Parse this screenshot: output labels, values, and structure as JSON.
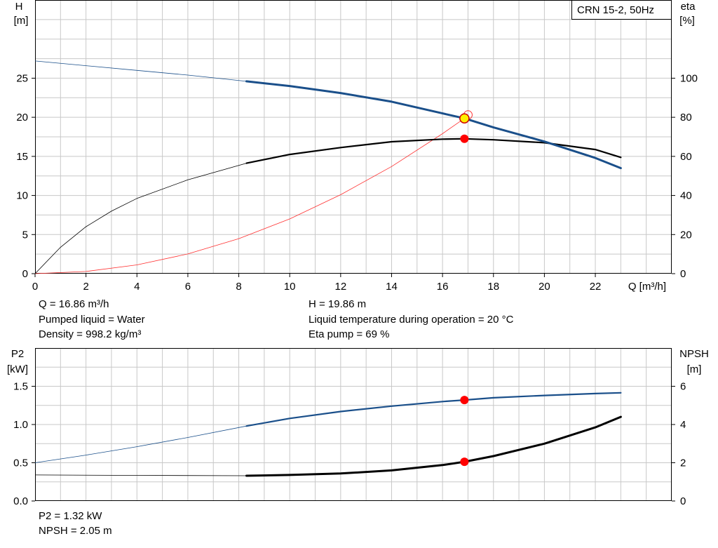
{
  "chart_data": [
    {
      "type": "line",
      "title": "CRN 15-2, 50Hz",
      "xlabel": "Q [m³/h]",
      "ylabel_left": [
        "H",
        "[m]"
      ],
      "ylabel_right": [
        "eta",
        "[%]"
      ],
      "xlim": [
        0,
        25
      ],
      "ylim_left": [
        0,
        35
      ],
      "ylim_right": [
        0,
        140
      ],
      "x_ticks": [
        0,
        2,
        4,
        6,
        8,
        10,
        12,
        14,
        16,
        18,
        20,
        22
      ],
      "y_ticks_left": [
        0,
        5,
        10,
        15,
        20,
        25
      ],
      "y_ticks_right": [
        0,
        20,
        40,
        60,
        80,
        100
      ],
      "grid": true,
      "series": [
        {
          "axis": "left",
          "color": "#1a4f8a",
          "x": [
            0,
            2,
            4,
            6,
            8.3,
            10,
            12,
            14,
            16,
            16.86,
            18,
            20,
            22,
            23
          ],
          "values": [
            27.2,
            26.6,
            26.0,
            25.4,
            24.6,
            24.0,
            23.1,
            22.0,
            20.5,
            19.86,
            18.7,
            16.9,
            14.8,
            13.5
          ]
        },
        {
          "axis": "right",
          "color": "#000000",
          "x": [
            0,
            1,
            2,
            3,
            4,
            6,
            8.3,
            10,
            12,
            14,
            16,
            16.86,
            18,
            20,
            22,
            23
          ],
          "values": [
            0,
            13.5,
            24,
            32,
            38.5,
            48,
            56.5,
            61,
            64.5,
            67.5,
            68.8,
            69,
            68.5,
            67,
            63.5,
            59.5
          ]
        },
        {
          "axis": "left",
          "color": "#ff3030",
          "x": [
            0,
            2,
            4,
            6,
            8,
            10,
            12,
            14,
            16,
            16.86,
            17
          ],
          "values": [
            0,
            0.28,
            1.12,
            2.52,
            4.48,
            7.0,
            10.1,
            13.7,
            17.9,
            19.86,
            20.3
          ]
        }
      ],
      "operating_point": {
        "x": 16.86,
        "h": 19.86,
        "eta": 69
      }
    },
    {
      "type": "line",
      "xlim": [
        0,
        25
      ],
      "ylabel_left": [
        "P2",
        "[kW]"
      ],
      "ylabel_right": [
        "NPSH",
        "[m]"
      ],
      "ylim_left": [
        0,
        2.0
      ],
      "ylim_right": [
        0,
        8
      ],
      "y_ticks_left": [
        "0.0",
        "0.5",
        "1.0",
        "1.5"
      ],
      "y_ticks_right": [
        0,
        2,
        4,
        6
      ],
      "grid": true,
      "series": [
        {
          "axis": "left",
          "color": "#1a4f8a",
          "x": [
            0,
            2,
            4,
            6,
            8.3,
            10,
            12,
            14,
            16,
            16.86,
            18,
            20,
            22,
            23
          ],
          "values": [
            0.5,
            0.6,
            0.71,
            0.83,
            0.98,
            1.08,
            1.17,
            1.24,
            1.3,
            1.32,
            1.35,
            1.38,
            1.405,
            1.415
          ]
        },
        {
          "axis": "right",
          "color": "#000000",
          "x": [
            0,
            4,
            8.3,
            10,
            12,
            14,
            16,
            16.86,
            18,
            20,
            22,
            23
          ],
          "values": [
            1.36,
            1.34,
            1.32,
            1.36,
            1.44,
            1.6,
            1.88,
            2.05,
            2.35,
            3.0,
            3.85,
            4.4
          ]
        }
      ],
      "operating_point": {
        "x": 16.86,
        "p2": 1.32,
        "npsh": 2.05
      }
    }
  ],
  "info_top": {
    "q": "Q = 16.86 m³/h",
    "liquid": "Pumped liquid = Water",
    "density": "Density = 998.2 kg/m³",
    "h": "H = 19.86 m",
    "temp": "Liquid temperature during operation = 20 °C",
    "eta": "Eta pump = 69 %"
  },
  "info_bottom": {
    "p2": "P2 = 1.32 kW",
    "npsh": "NPSH = 2.05 m"
  }
}
